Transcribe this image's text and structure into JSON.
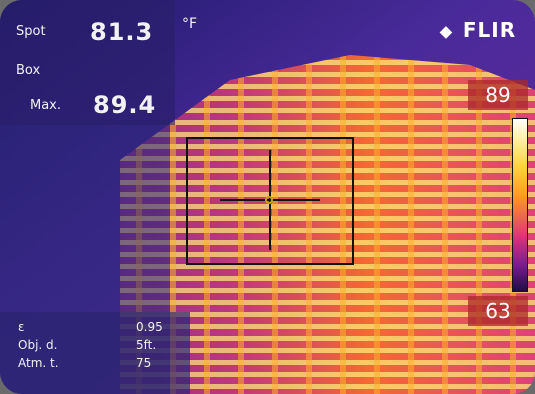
{
  "overlay": {
    "spot_label": "Spot",
    "spot_value": "81.3",
    "unit": "°F",
    "box_label": "Box",
    "max_label": "Max.",
    "max_value": "89.4"
  },
  "brand": {
    "logo_text": "FLIR",
    "logo_icon": "flir-diamond-icon"
  },
  "scale": {
    "max": "89",
    "min": "63"
  },
  "parameters": [
    {
      "name": "ε",
      "value": "0.95"
    },
    {
      "name": "Obj. d.",
      "value": "5ft."
    },
    {
      "name": "Atm. t.",
      "value": "75"
    }
  ],
  "colors": {
    "hot": "#ffe45a",
    "warm": "#f08a1f",
    "cool": "#7b2a8a",
    "cold": "#2a1448"
  }
}
